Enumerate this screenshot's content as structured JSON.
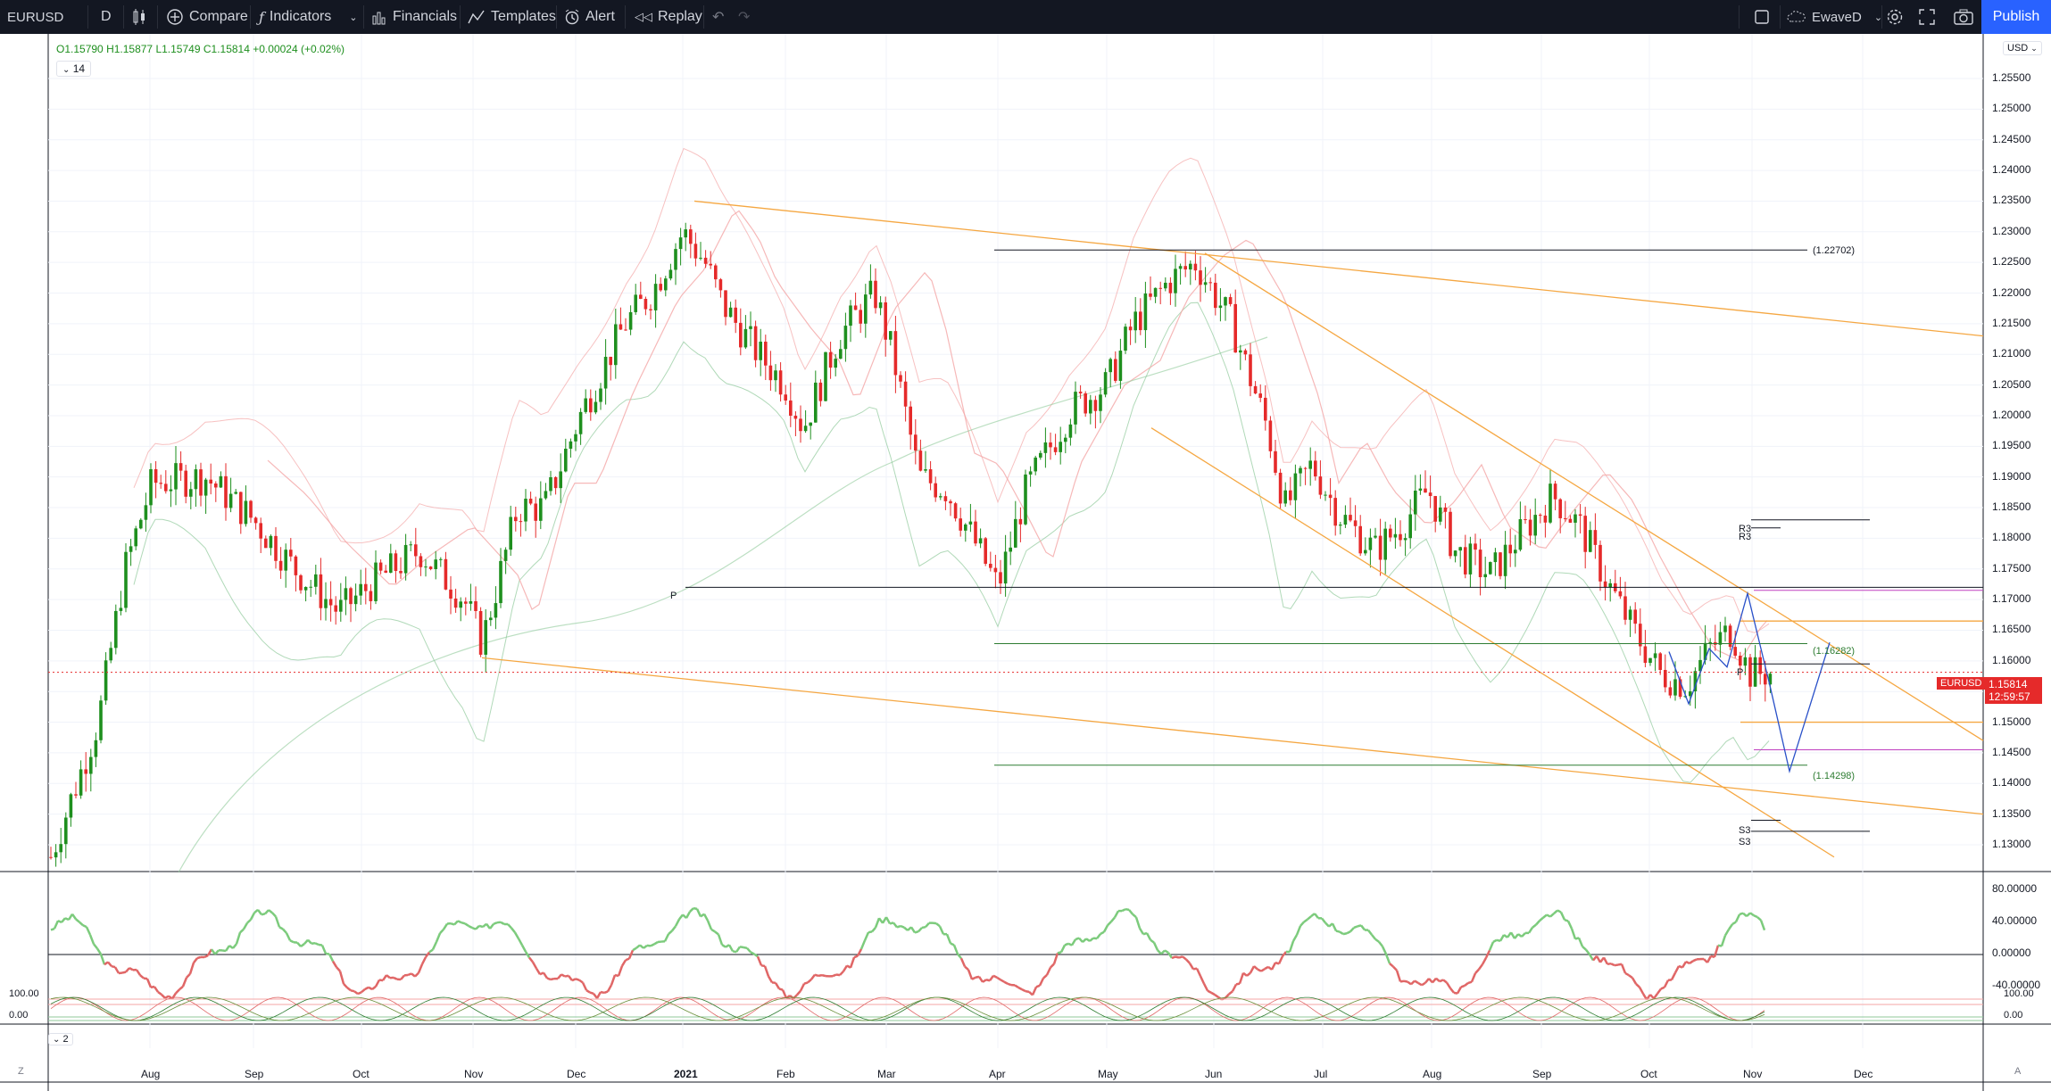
{
  "toolbar": {
    "symbol": "EURUSD",
    "interval": "D",
    "compare": "Compare",
    "indicators": "Indicators",
    "financials": "Financials",
    "templates": "Templates",
    "alert": "Alert",
    "replay": "Replay",
    "layout_name": "EwaveD",
    "publish": "Publish"
  },
  "legend": {
    "open": "O1.15790",
    "high": "H1.15877",
    "low": "L1.15749",
    "close": "C1.15814",
    "change": "+0.00024 (+0.02%)",
    "indicator_param": "14",
    "osc2_param": "2"
  },
  "price_scale": {
    "currency": "USD",
    "labels": [
      "1.25500",
      "1.25000",
      "1.24500",
      "1.24000",
      "1.23500",
      "1.23000",
      "1.22500",
      "1.22000",
      "1.21500",
      "1.21000",
      "1.20500",
      "1.20000",
      "1.19500",
      "1.19000",
      "1.18500",
      "1.18000",
      "1.17500",
      "1.17000",
      "1.16500",
      "1.16000",
      "1.15500",
      "1.15000",
      "1.14500",
      "1.14000",
      "1.13500",
      "1.13000"
    ],
    "current_price": "1.15814",
    "countdown": "12:59:57",
    "symbol_tag": "EURUSD"
  },
  "osc1_scale": [
    "80.00000",
    "40.00000",
    "0.00000",
    "-40.00000"
  ],
  "osc2_scale": [
    "100.00",
    "0.00",
    "100.00",
    "0.00"
  ],
  "time_axis": [
    "Aug",
    "Sep",
    "Oct",
    "Nov",
    "Dec",
    "2021",
    "Feb",
    "Mar",
    "Apr",
    "May",
    "Jun",
    "Jul",
    "Aug",
    "Sep",
    "Oct",
    "Nov",
    "Dec"
  ],
  "annotations": {
    "level_top": "(1.22702)",
    "level_mid": "(1.16282)",
    "level_low": "(1.14298)",
    "pivot": "P",
    "r3a": "R3",
    "r3b": "R3",
    "s3a": "S3",
    "s3b": "S3",
    "pr": "P"
  },
  "colors": {
    "bull": "#1e8f1e",
    "bear": "#e52a2a",
    "trend": "#f5a742",
    "ma_pink": "#f4a6a6",
    "ma_green": "#8fc99a",
    "price_line": "#e52a2a",
    "publish": "#2962ff"
  },
  "chart_data": {
    "type": "candlestick",
    "symbol": "EURUSD",
    "interval": "D",
    "ohlc_last": {
      "open": 1.1579,
      "high": 1.15877,
      "low": 1.15749,
      "close": 1.15814
    },
    "ylim": [
      1.128,
      1.258
    ],
    "key_levels": [
      1.22702,
      1.16282,
      1.14298
    ],
    "series_monthly_close": [
      {
        "month": "Jul 2020",
        "close": 1.177
      },
      {
        "month": "Aug 2020",
        "close": 1.192
      },
      {
        "month": "Sep 2020",
        "close": 1.172
      },
      {
        "month": "Oct 2020",
        "close": 1.165
      },
      {
        "month": "Nov 2020",
        "close": 1.194
      },
      {
        "month": "Dec 2020",
        "close": 1.222
      },
      {
        "month": "Jan 2021",
        "close": 1.213
      },
      {
        "month": "Feb 2021",
        "close": 1.207
      },
      {
        "month": "Mar 2021",
        "close": 1.173
      },
      {
        "month": "Apr 2021",
        "close": 1.202
      },
      {
        "month": "May 2021",
        "close": 1.221
      },
      {
        "month": "Jun 2021",
        "close": 1.186
      },
      {
        "month": "Jul 2021",
        "close": 1.187
      },
      {
        "month": "Aug 2021",
        "close": 1.18
      },
      {
        "month": "Sep 2021",
        "close": 1.158
      },
      {
        "month": "Oct 2021",
        "close": 1.156
      },
      {
        "month": "Nov 2021",
        "close": 1.158
      }
    ]
  }
}
